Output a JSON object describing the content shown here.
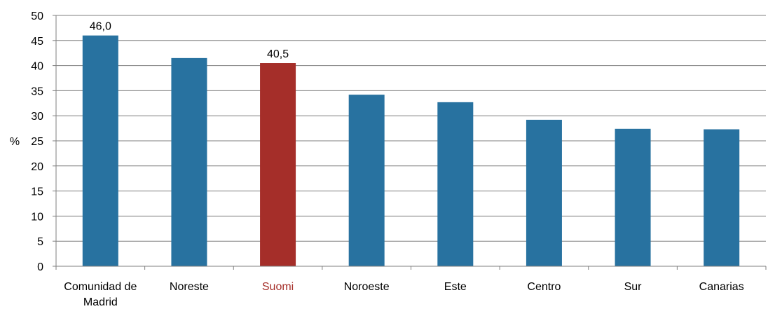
{
  "chart_data": {
    "type": "bar",
    "title": "",
    "xlabel": "",
    "ylabel": "%",
    "ylim": [
      0,
      50
    ],
    "yticks": [
      "0",
      "5",
      "10",
      "15",
      "20",
      "25",
      "30",
      "35",
      "40",
      "45",
      "50"
    ],
    "grid": true,
    "categories": [
      "Comunidad de Madrid",
      "Noreste",
      "Suomi",
      "Noroeste",
      "Este",
      "Centro",
      "Sur",
      "Canarias"
    ],
    "category_lines": [
      [
        "Comunidad de",
        "Madrid"
      ],
      [
        "Noreste"
      ],
      [
        "Suomi"
      ],
      [
        "Noroeste"
      ],
      [
        "Este"
      ],
      [
        "Centro"
      ],
      [
        "Sur"
      ],
      [
        "Canarias"
      ]
    ],
    "values": [
      46.0,
      41.5,
      40.5,
      34.2,
      32.7,
      29.2,
      27.4,
      27.3
    ],
    "highlight_index": 2,
    "data_labels": [
      {
        "index": 0,
        "text": "46,0"
      },
      {
        "index": 2,
        "text": "40,5"
      }
    ],
    "colors": {
      "bar": "#2872a0",
      "highlight": "#a52e29",
      "grid": "#7f7f7f",
      "axis": "#7f7f7f",
      "text": "#000000"
    }
  }
}
